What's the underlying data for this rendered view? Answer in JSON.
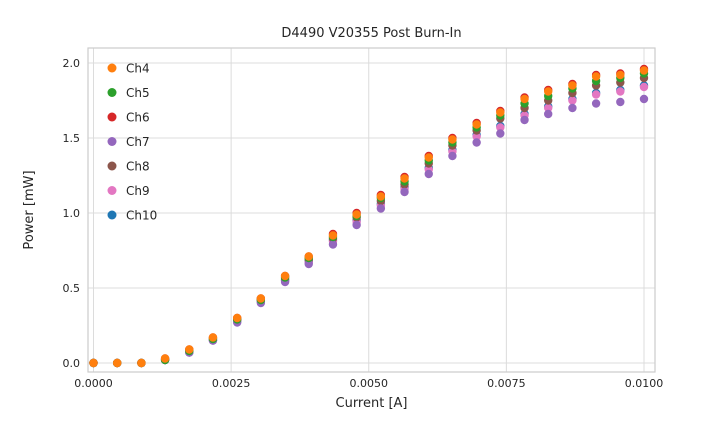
{
  "chart_data": {
    "type": "scatter",
    "title": "D4490 V20355 Post Burn-In",
    "xlabel": "Current [A]",
    "ylabel": "Power [mW]",
    "grid": true,
    "legend_position": "upper left",
    "marker": "circle",
    "xlim": [
      -0.0001,
      0.0102
    ],
    "ylim": [
      -0.06,
      2.1
    ],
    "xticks": {
      "values": [
        0.0,
        0.0025,
        0.005,
        0.0075,
        0.01
      ],
      "labels": [
        "0.0000",
        "0.0025",
        "0.0050",
        "0.0075",
        "0.0100"
      ]
    },
    "yticks": {
      "values": [
        0.0,
        0.5,
        1.0,
        1.5,
        2.0
      ],
      "labels": [
        "0.0",
        "0.5",
        "1.0",
        "1.5",
        "2.0"
      ]
    },
    "x": [
      0.0,
      0.00043,
      0.00087,
      0.0013,
      0.00174,
      0.00217,
      0.00261,
      0.00304,
      0.00348,
      0.00391,
      0.00435,
      0.00478,
      0.00522,
      0.00565,
      0.00609,
      0.00652,
      0.00696,
      0.00739,
      0.00783,
      0.00826,
      0.0087,
      0.00913,
      0.00957,
      0.01
    ],
    "series": [
      {
        "name": "Ch4",
        "color": "#ff7f0e",
        "values": [
          0,
          0,
          0,
          0.03,
          0.09,
          0.17,
          0.3,
          0.43,
          0.58,
          0.71,
          0.85,
          0.99,
          1.11,
          1.23,
          1.37,
          1.49,
          1.59,
          1.67,
          1.76,
          1.81,
          1.85,
          1.91,
          1.92,
          1.95
        ]
      },
      {
        "name": "Ch5",
        "color": "#2ca02c",
        "values": [
          0,
          0,
          0,
          0.02,
          0.08,
          0.16,
          0.29,
          0.42,
          0.57,
          0.7,
          0.84,
          0.98,
          1.1,
          1.21,
          1.35,
          1.47,
          1.57,
          1.65,
          1.73,
          1.78,
          1.83,
          1.88,
          1.9,
          1.93
        ]
      },
      {
        "name": "Ch6",
        "color": "#d62728",
        "values": [
          0,
          0,
          0,
          0.03,
          0.09,
          0.17,
          0.3,
          0.43,
          0.58,
          0.71,
          0.86,
          1.0,
          1.12,
          1.24,
          1.38,
          1.5,
          1.6,
          1.68,
          1.77,
          1.82,
          1.86,
          1.92,
          1.93,
          1.96
        ]
      },
      {
        "name": "Ch7",
        "color": "#9467bd",
        "values": [
          0,
          0,
          0,
          0.02,
          0.07,
          0.15,
          0.27,
          0.4,
          0.54,
          0.66,
          0.79,
          0.92,
          1.03,
          1.14,
          1.26,
          1.38,
          1.47,
          1.53,
          1.62,
          1.66,
          1.7,
          1.73,
          1.74,
          1.76
        ]
      },
      {
        "name": "Ch8",
        "color": "#8c564b",
        "values": [
          0,
          0,
          0,
          0.02,
          0.08,
          0.16,
          0.29,
          0.42,
          0.56,
          0.69,
          0.83,
          0.97,
          1.08,
          1.19,
          1.33,
          1.45,
          1.55,
          1.63,
          1.7,
          1.75,
          1.8,
          1.85,
          1.87,
          1.9
        ]
      },
      {
        "name": "Ch9",
        "color": "#e377c2",
        "values": [
          0,
          0,
          0,
          0.02,
          0.07,
          0.15,
          0.28,
          0.41,
          0.55,
          0.67,
          0.81,
          0.94,
          1.05,
          1.16,
          1.29,
          1.41,
          1.51,
          1.57,
          1.65,
          1.7,
          1.75,
          1.79,
          1.81,
          1.84
        ]
      },
      {
        "name": "Ch10",
        "color": "#1f77b4",
        "values": [
          0,
          0,
          0,
          0.02,
          0.07,
          0.15,
          0.28,
          0.41,
          0.55,
          0.68,
          0.82,
          0.95,
          1.06,
          1.17,
          1.3,
          1.42,
          1.52,
          1.58,
          1.66,
          1.71,
          1.76,
          1.8,
          1.82,
          1.85
        ]
      }
    ],
    "style": {
      "grid_color": "#dcdcdc",
      "spine_color": "#cccccc",
      "tick_label_color": "#262626",
      "background": "#ffffff"
    }
  }
}
